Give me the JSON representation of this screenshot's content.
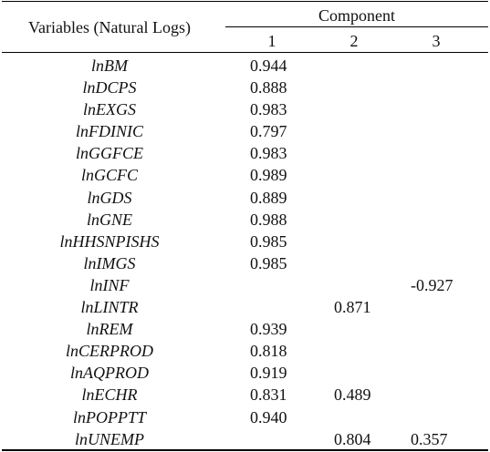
{
  "header": {
    "variables_label": "Variables (Natural Logs)",
    "component_label": "Component",
    "columns": [
      "1",
      "2",
      "3"
    ]
  },
  "rows": [
    {
      "variable": "lnBM",
      "c1": "0.944",
      "c2": "",
      "c3": ""
    },
    {
      "variable": "lnDCPS",
      "c1": "0.888",
      "c2": "",
      "c3": ""
    },
    {
      "variable": "lnEXGS",
      "c1": "0.983",
      "c2": "",
      "c3": ""
    },
    {
      "variable": "lnFDINIC",
      "c1": "0.797",
      "c2": "",
      "c3": ""
    },
    {
      "variable": "lnGGFCE",
      "c1": "0.983",
      "c2": "",
      "c3": ""
    },
    {
      "variable": "lnGCFC",
      "c1": "0.989",
      "c2": "",
      "c3": ""
    },
    {
      "variable": "lnGDS",
      "c1": "0.889",
      "c2": "",
      "c3": ""
    },
    {
      "variable": "lnGNE",
      "c1": "0.988",
      "c2": "",
      "c3": ""
    },
    {
      "variable": "lnHHSNPISHS",
      "c1": "0.985",
      "c2": "",
      "c3": ""
    },
    {
      "variable": "lnIMGS",
      "c1": "0.985",
      "c2": "",
      "c3": ""
    },
    {
      "variable": "lnINF",
      "c1": "",
      "c2": "",
      "c3": "-0.927"
    },
    {
      "variable": "lnLINTR",
      "c1": "",
      "c2": "0.871",
      "c3": ""
    },
    {
      "variable": "lnREM",
      "c1": "0.939",
      "c2": "",
      "c3": ""
    },
    {
      "variable": "lnCERPROD",
      "c1": "0.818",
      "c2": "",
      "c3": ""
    },
    {
      "variable": "lnAQPROD",
      "c1": "0.919",
      "c2": "",
      "c3": ""
    },
    {
      "variable": "lnECHR",
      "c1": "0.831",
      "c2": "0.489",
      "c3": ""
    },
    {
      "variable": "lnPOPPTT",
      "c1": "0.940",
      "c2": "",
      "c3": ""
    },
    {
      "variable": "lnUNEMP",
      "c1": "",
      "c2": "0.804",
      "c3": "0.357"
    }
  ]
}
